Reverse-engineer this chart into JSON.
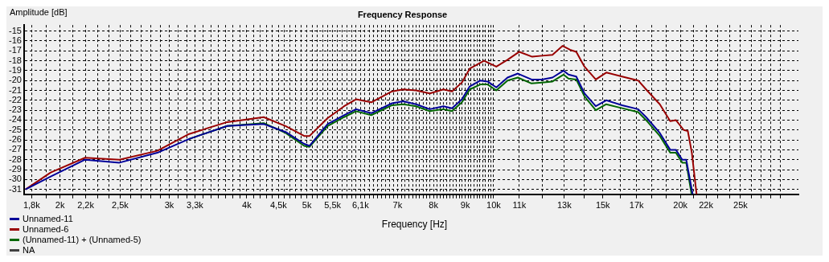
{
  "chart_data": {
    "type": "line",
    "title": "Frequency Response",
    "xlabel": "Frequency [Hz]",
    "ylabel": "Amplitude [dB]",
    "log": "x",
    "grid": true,
    "legend": "bottom left",
    "marker": "none",
    "line_style": "solid",
    "xlim": [
      1750,
      31000
    ],
    "ylim": [
      -31.5,
      -14.4
    ],
    "yticks": [
      -31,
      -30,
      -29,
      -28,
      -27,
      -26,
      -25,
      -24,
      -23,
      -22,
      -21,
      -20,
      -19,
      -18,
      -17,
      -16,
      -15
    ],
    "xticks": [
      {
        "value": 1800,
        "label": "1,8k"
      },
      {
        "value": 1900,
        "label": null
      },
      {
        "value": 2000,
        "label": "2k"
      },
      {
        "value": 2100,
        "label": null
      },
      {
        "value": 2200,
        "label": "2,2k"
      },
      {
        "value": 2300,
        "label": null
      },
      {
        "value": 2400,
        "label": null
      },
      {
        "value": 2500,
        "label": "2,5k"
      },
      {
        "value": 2600,
        "label": null
      },
      {
        "value": 2700,
        "label": null
      },
      {
        "value": 2800,
        "label": null
      },
      {
        "value": 2900,
        "label": null
      },
      {
        "value": 3000,
        "label": "3k"
      },
      {
        "value": 3100,
        "label": null
      },
      {
        "value": 3200,
        "label": null
      },
      {
        "value": 3300,
        "label": "3,3k"
      },
      {
        "value": 3400,
        "label": null
      },
      {
        "value": 3500,
        "label": null
      },
      {
        "value": 3600,
        "label": null
      },
      {
        "value": 3700,
        "label": null
      },
      {
        "value": 3800,
        "label": null
      },
      {
        "value": 3900,
        "label": null
      },
      {
        "value": 4000,
        "label": "4k"
      },
      {
        "value": 4100,
        "label": null
      },
      {
        "value": 4200,
        "label": null
      },
      {
        "value": 4300,
        "label": null
      },
      {
        "value": 4400,
        "label": null
      },
      {
        "value": 4500,
        "label": "4,5k"
      },
      {
        "value": 4600,
        "label": null
      },
      {
        "value": 4700,
        "label": null
      },
      {
        "value": 4800,
        "label": null
      },
      {
        "value": 4900,
        "label": null
      },
      {
        "value": 5000,
        "label": "5k"
      },
      {
        "value": 5100,
        "label": null
      },
      {
        "value": 5200,
        "label": null
      },
      {
        "value": 5300,
        "label": null
      },
      {
        "value": 5400,
        "label": null
      },
      {
        "value": 5500,
        "label": "5,5k"
      },
      {
        "value": 5600,
        "label": null
      },
      {
        "value": 5700,
        "label": null
      },
      {
        "value": 5800,
        "label": null
      },
      {
        "value": 5900,
        "label": null
      },
      {
        "value": 6000,
        "label": null
      },
      {
        "value": 6100,
        "label": "6,1k"
      },
      {
        "value": 6200,
        "label": null
      },
      {
        "value": 6300,
        "label": null
      },
      {
        "value": 6400,
        "label": null
      },
      {
        "value": 6500,
        "label": null
      },
      {
        "value": 6600,
        "label": null
      },
      {
        "value": 6700,
        "label": null
      },
      {
        "value": 6800,
        "label": null
      },
      {
        "value": 6900,
        "label": null
      },
      {
        "value": 7000,
        "label": "7k"
      },
      {
        "value": 7100,
        "label": null
      },
      {
        "value": 7200,
        "label": null
      },
      {
        "value": 7300,
        "label": null
      },
      {
        "value": 7400,
        "label": null
      },
      {
        "value": 7500,
        "label": null
      },
      {
        "value": 7600,
        "label": null
      },
      {
        "value": 7700,
        "label": null
      },
      {
        "value": 7800,
        "label": null
      },
      {
        "value": 7900,
        "label": null
      },
      {
        "value": 8000,
        "label": "8k"
      },
      {
        "value": 8100,
        "label": null
      },
      {
        "value": 8200,
        "label": null
      },
      {
        "value": 8300,
        "label": null
      },
      {
        "value": 8400,
        "label": null
      },
      {
        "value": 8500,
        "label": null
      },
      {
        "value": 8600,
        "label": null
      },
      {
        "value": 8700,
        "label": null
      },
      {
        "value": 8800,
        "label": null
      },
      {
        "value": 8900,
        "label": null
      },
      {
        "value": 9000,
        "label": "9k"
      },
      {
        "value": 9100,
        "label": null
      },
      {
        "value": 9200,
        "label": null
      },
      {
        "value": 9300,
        "label": null
      },
      {
        "value": 9400,
        "label": null
      },
      {
        "value": 9500,
        "label": null
      },
      {
        "value": 9600,
        "label": null
      },
      {
        "value": 9700,
        "label": null
      },
      {
        "value": 9800,
        "label": null
      },
      {
        "value": 9900,
        "label": null
      },
      {
        "value": 10000,
        "label": "10k"
      },
      {
        "value": 11000,
        "label": "11k"
      },
      {
        "value": 12000,
        "label": null
      },
      {
        "value": 13000,
        "label": "13k"
      },
      {
        "value": 14000,
        "label": null
      },
      {
        "value": 15000,
        "label": "15k"
      },
      {
        "value": 16000,
        "label": null
      },
      {
        "value": 17000,
        "label": "17k"
      },
      {
        "value": 18000,
        "label": null
      },
      {
        "value": 19000,
        "label": null
      },
      {
        "value": 20000,
        "label": "20k"
      },
      {
        "value": 21000,
        "label": null
      },
      {
        "value": 22000,
        "label": "22k"
      },
      {
        "value": 23000,
        "label": null
      },
      {
        "value": 24000,
        "label": null
      },
      {
        "value": 25000,
        "label": "25k"
      },
      {
        "value": 26000,
        "label": null
      },
      {
        "value": 27000,
        "label": null
      },
      {
        "value": 28000,
        "label": null
      },
      {
        "value": 29000,
        "label": null
      }
    ],
    "series": [
      {
        "name": "Unnamed-11",
        "color": "#000099",
        "x": [
          1760,
          1932,
          2195,
          2494,
          2870,
          3230,
          3720,
          4260,
          4620,
          4950,
          5050,
          5400,
          5740,
          6000,
          6350,
          6860,
          7150,
          7500,
          7890,
          8300,
          8570,
          8890,
          9150,
          9520,
          9780,
          10100,
          10530,
          10940,
          11510,
          11960,
          12440,
          12960,
          13200,
          13590,
          14010,
          14610,
          15190,
          16110,
          17100,
          17610,
          18530,
          19260,
          19670,
          20140,
          20440,
          20930
        ],
        "values": [
          -31.0,
          -29.7,
          -28.0,
          -28.3,
          -27.3,
          -25.9,
          -24.6,
          -24.4,
          -25.2,
          -26.4,
          -26.6,
          -24.4,
          -23.5,
          -22.9,
          -23.3,
          -22.3,
          -22.1,
          -22.4,
          -22.9,
          -22.6,
          -22.8,
          -21.9,
          -20.6,
          -20.0,
          -20.1,
          -20.7,
          -19.7,
          -19.3,
          -19.9,
          -19.9,
          -19.7,
          -19.0,
          -19.4,
          -19.6,
          -21.3,
          -22.6,
          -22.0,
          -22.5,
          -22.9,
          -23.7,
          -25.3,
          -27.0,
          -27.0,
          -28.0,
          -28.0,
          -31.5
        ]
      },
      {
        "name": "Unnamed-6",
        "color": "#990000",
        "x": [
          1760,
          1932,
          2195,
          2494,
          2870,
          3230,
          3720,
          4260,
          4620,
          4950,
          5050,
          5400,
          5740,
          6000,
          6350,
          6860,
          7150,
          7500,
          7890,
          8300,
          8570,
          8890,
          9150,
          9650,
          10100,
          10530,
          11000,
          11540,
          11960,
          12440,
          12920,
          13280,
          13590,
          14010,
          14610,
          15190,
          16110,
          17100,
          17610,
          18530,
          19260,
          19670,
          20250,
          20560,
          20870,
          21240
        ],
        "values": [
          -31.0,
          -29.3,
          -27.8,
          -28.0,
          -27.1,
          -25.4,
          -24.2,
          -23.7,
          -24.6,
          -25.6,
          -25.6,
          -23.8,
          -22.6,
          -21.9,
          -22.2,
          -21.1,
          -20.9,
          -21.0,
          -21.3,
          -20.9,
          -21.1,
          -20.2,
          -18.8,
          -18.0,
          -18.6,
          -17.9,
          -17.1,
          -17.6,
          -17.5,
          -17.4,
          -16.5,
          -16.9,
          -17.1,
          -18.6,
          -19.9,
          -19.2,
          -19.6,
          -20.0,
          -20.9,
          -22.4,
          -24.1,
          -24.0,
          -25.0,
          -25.1,
          -27.3,
          -31.5
        ]
      },
      {
        "name": "(Unnamed-11) + (Unnamed-5)",
        "color": "#006600",
        "x": [
          3230,
          3720,
          4260,
          4620,
          4950,
          5050,
          5400,
          5740,
          6000,
          6350,
          6860,
          7150,
          7500,
          7890,
          8300,
          8570,
          8890,
          9150,
          9520,
          9780,
          10100,
          10530,
          10940,
          11510,
          11960,
          12440,
          12960,
          13200,
          13590,
          14010,
          14610,
          15190,
          16110,
          17100,
          17610,
          18530,
          19260,
          19670,
          20140,
          20440,
          20850
        ],
        "values": [
          -25.9,
          -24.6,
          -24.3,
          -25.3,
          -26.6,
          -26.7,
          -24.6,
          -23.7,
          -23.1,
          -23.5,
          -22.5,
          -22.4,
          -22.6,
          -23.1,
          -22.9,
          -23.1,
          -22.2,
          -20.9,
          -20.4,
          -20.4,
          -21.0,
          -20.0,
          -19.7,
          -20.3,
          -20.2,
          -20.1,
          -19.4,
          -19.8,
          -19.9,
          -21.6,
          -23.0,
          -22.4,
          -22.8,
          -23.2,
          -24.0,
          -25.6,
          -27.3,
          -27.3,
          -28.3,
          -28.3,
          -31.5
        ]
      },
      {
        "name": "NA",
        "color": "#404040"
      }
    ]
  }
}
